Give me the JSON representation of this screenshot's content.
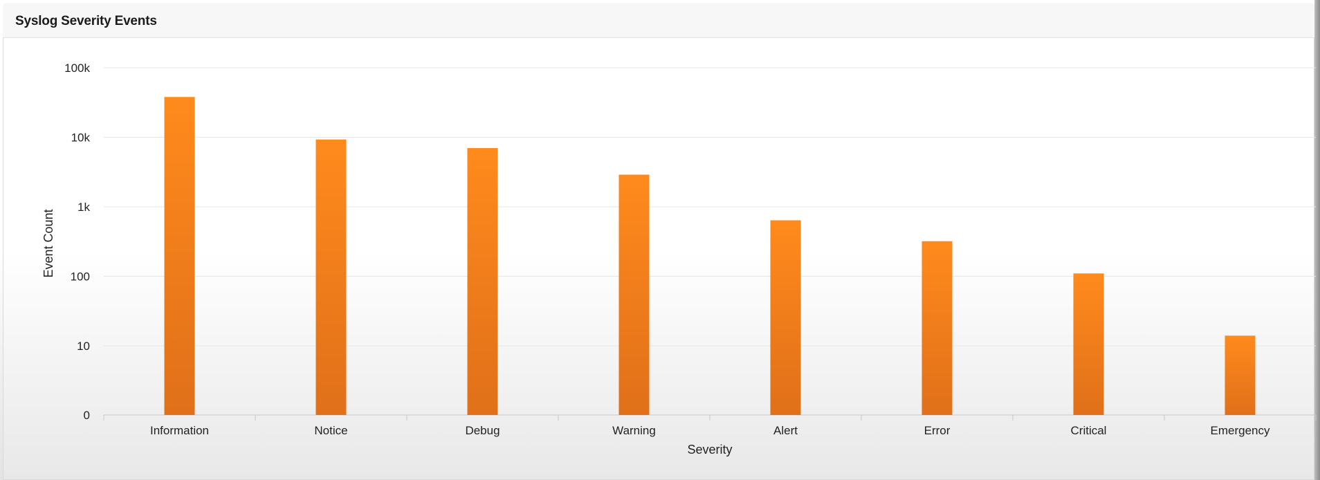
{
  "panel": {
    "title": "Syslog Severity Events"
  },
  "colors": {
    "bar_top": "#ff8a1c",
    "bar_bottom": "#e0701a",
    "grid": "#e6e6e6",
    "axis": "#c8c8c8"
  },
  "chart_data": {
    "type": "bar",
    "title": "Syslog Severity Events",
    "xlabel": "Severity",
    "ylabel": "Event Count",
    "yscale": "log",
    "yticks": [
      0,
      10,
      100,
      1000,
      10000,
      100000
    ],
    "ytick_labels": [
      "0",
      "10",
      "100",
      "1k",
      "10k",
      "100k"
    ],
    "categories": [
      "Information",
      "Notice",
      "Debug",
      "Warning",
      "Alert",
      "Error",
      "Critical",
      "Emergency"
    ],
    "values": [
      38000,
      9300,
      7000,
      2900,
      640,
      320,
      110,
      14
    ],
    "grid": true,
    "legend": "none"
  }
}
